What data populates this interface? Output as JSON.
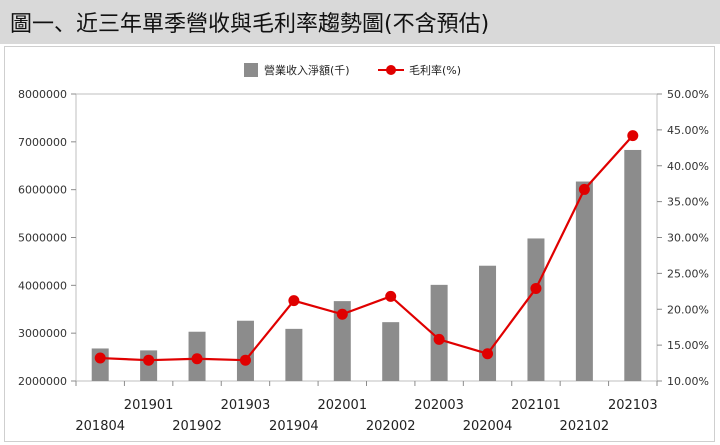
{
  "header": {
    "title": "圖一、近三年單季營收與毛利率趨勢圖(不含預估)"
  },
  "chart_data": {
    "type": "bar",
    "categories": [
      "201804",
      "201901",
      "201902",
      "201903",
      "201904",
      "202001",
      "202002",
      "202003",
      "202004",
      "202101",
      "202102",
      "202103"
    ],
    "series": [
      {
        "name": "營業收入淨額(千)",
        "type": "bar",
        "axis": "left",
        "color": "#8c8c8c",
        "values": [
          2680000,
          2640000,
          3030000,
          3260000,
          3090000,
          3670000,
          3230000,
          4010000,
          4410000,
          4980000,
          6170000,
          6830000
        ]
      },
      {
        "name": "毛利率(%)",
        "type": "line",
        "axis": "right",
        "color": "#e00000",
        "values": [
          13.2,
          12.9,
          13.1,
          12.9,
          21.2,
          19.3,
          21.8,
          15.8,
          13.8,
          22.9,
          36.7,
          44.2
        ]
      }
    ],
    "y_left": {
      "lim": [
        2000000,
        8000000
      ],
      "ticks": [
        2000000,
        3000000,
        4000000,
        5000000,
        6000000,
        7000000,
        8000000
      ],
      "tick_labels": [
        "2000000",
        "3000000",
        "4000000",
        "5000000",
        "6000000",
        "7000000",
        "8000000"
      ]
    },
    "y_right": {
      "lim": [
        10,
        50
      ],
      "ticks": [
        10,
        15,
        20,
        25,
        30,
        35,
        40,
        45,
        50
      ],
      "tick_labels": [
        "10.00%",
        "15.00%",
        "20.00%",
        "25.00%",
        "30.00%",
        "35.00%",
        "40.00%",
        "45.00%",
        "50.00%"
      ]
    },
    "legend": {
      "placement": "top-center",
      "entries": [
        "營業收入淨額(千)",
        "毛利率(%)"
      ]
    },
    "grid": false,
    "title": "",
    "xlabel": "",
    "ylabel": ""
  }
}
